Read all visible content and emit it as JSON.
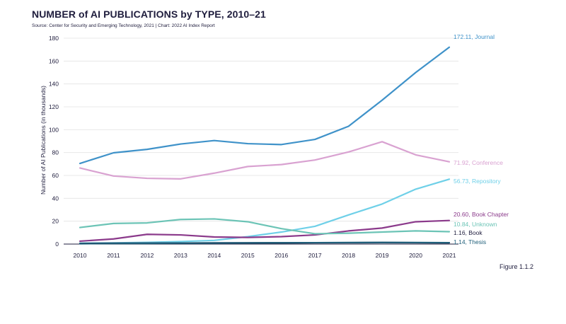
{
  "header": {
    "title": "NUMBER of AI PUBLICATIONS by TYPE, 2010–21",
    "source": "Source: Center for Security and Emerging Technology, 2021 | Chart: 2022 AI Index Report"
  },
  "figure_label": "Figure 1.1.2",
  "chart_data": {
    "type": "line",
    "title": "NUMBER of AI PUBLICATIONS by TYPE, 2010–21",
    "xlabel": "",
    "ylabel": "Number of AI Publications (in thousands)",
    "ylim": [
      0,
      180
    ],
    "yticks": [
      0,
      20,
      40,
      60,
      80,
      100,
      120,
      140,
      160,
      180
    ],
    "grid": "horizontal",
    "x": [
      "2010",
      "2011",
      "2012",
      "2013",
      "2014",
      "2015",
      "2016",
      "2017",
      "2018",
      "2019",
      "2020",
      "2021"
    ],
    "series": [
      {
        "name": "Journal",
        "end_label": "172.11, Journal",
        "color": "#3f92c9",
        "values": [
          70.5,
          79.8,
          82.8,
          87.5,
          90.5,
          87.8,
          87.0,
          91.5,
          103,
          125.8,
          150,
          172.11
        ]
      },
      {
        "name": "Conference",
        "end_label": "71.92, Conference",
        "color": "#d9a2d1",
        "values": [
          66.5,
          59.5,
          57.5,
          57.0,
          62.0,
          67.8,
          69.5,
          73.5,
          80.5,
          89.5,
          78.0,
          71.92
        ]
      },
      {
        "name": "Repository",
        "end_label": "56.73, Repository",
        "color": "#6fd0e8",
        "values": [
          0.8,
          1.0,
          1.5,
          2.2,
          3.2,
          6.5,
          10.5,
          15.5,
          25.5,
          35.0,
          48.0,
          56.73
        ]
      },
      {
        "name": "Book Chapter",
        "end_label": "20.60, Book Chapter",
        "color": "#8b3a8b",
        "values": [
          2.5,
          4.5,
          8.5,
          8.0,
          6.2,
          5.8,
          6.5,
          8.0,
          11.5,
          14.0,
          19.5,
          20.6
        ]
      },
      {
        "name": "Unknown",
        "end_label": "10.84, Unknown",
        "color": "#6cc4b6",
        "values": [
          14.5,
          18.0,
          18.5,
          21.5,
          22.0,
          19.5,
          13.5,
          9.0,
          9.5,
          10.5,
          11.5,
          10.84
        ]
      },
      {
        "name": "Book",
        "end_label": "1.16, Book",
        "color": "#1f1d3d",
        "values": [
          0.5,
          0.7,
          0.8,
          0.9,
          1.0,
          1.0,
          1.1,
          1.2,
          1.2,
          1.3,
          1.2,
          1.16
        ]
      },
      {
        "name": "Thesis",
        "end_label": "1.14, Thesis",
        "color": "#1f5f7a",
        "values": [
          0.3,
          0.5,
          0.6,
          0.8,
          0.9,
          1.0,
          1.1,
          1.2,
          1.3,
          1.4,
          1.3,
          1.14
        ]
      }
    ]
  }
}
